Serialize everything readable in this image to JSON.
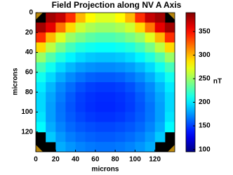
{
  "chart_data": {
    "type": "heatmap",
    "title": "Field Projection along NV A Axis",
    "x_label": "microns",
    "y_label": "microns",
    "colorbar_label": "nT",
    "xlim": [
      0,
      140
    ],
    "ylim": [
      0,
      140
    ],
    "y_reversed": true,
    "xticks": [
      0,
      20,
      40,
      60,
      80,
      100,
      120
    ],
    "yticks": [
      0,
      20,
      40,
      60,
      80,
      100,
      120
    ],
    "clim": [
      95,
      390
    ],
    "cticks": [
      100,
      150,
      200,
      250,
      300,
      350
    ],
    "colormap": "jet",
    "z": [
      [
        null,
        380,
        370,
        340,
        300,
        280,
        270,
        270,
        280,
        300,
        340,
        370,
        380,
        null
      ],
      [
        380,
        360,
        320,
        290,
        265,
        255,
        250,
        250,
        255,
        265,
        290,
        320,
        360,
        380
      ],
      [
        340,
        300,
        270,
        250,
        240,
        232,
        228,
        228,
        232,
        240,
        250,
        270,
        300,
        340
      ],
      [
        290,
        260,
        240,
        225,
        215,
        210,
        207,
        207,
        210,
        215,
        225,
        240,
        260,
        290
      ],
      [
        250,
        230,
        215,
        203,
        195,
        190,
        188,
        188,
        190,
        195,
        203,
        215,
        230,
        250
      ],
      [
        225,
        210,
        195,
        185,
        178,
        174,
        172,
        172,
        174,
        178,
        185,
        195,
        210,
        225
      ],
      [
        210,
        195,
        182,
        172,
        165,
        160,
        158,
        158,
        160,
        165,
        172,
        182,
        195,
        210
      ],
      [
        200,
        185,
        172,
        163,
        155,
        150,
        148,
        148,
        150,
        155,
        163,
        172,
        185,
        200
      ],
      [
        195,
        180,
        168,
        158,
        150,
        146,
        144,
        144,
        146,
        150,
        158,
        168,
        180,
        195
      ],
      [
        195,
        178,
        165,
        156,
        149,
        145,
        143,
        143,
        145,
        149,
        156,
        165,
        178,
        195
      ],
      [
        198,
        178,
        166,
        158,
        152,
        148,
        146,
        146,
        148,
        152,
        158,
        166,
        178,
        198
      ],
      [
        205,
        182,
        170,
        162,
        157,
        154,
        152,
        152,
        154,
        157,
        162,
        170,
        182,
        205
      ],
      [
        null,
        190,
        176,
        168,
        163,
        160,
        158,
        158,
        160,
        163,
        168,
        176,
        190,
        null
      ],
      [
        null,
        null,
        182,
        175,
        170,
        167,
        165,
        165,
        167,
        170,
        175,
        182,
        null,
        null
      ]
    ]
  }
}
